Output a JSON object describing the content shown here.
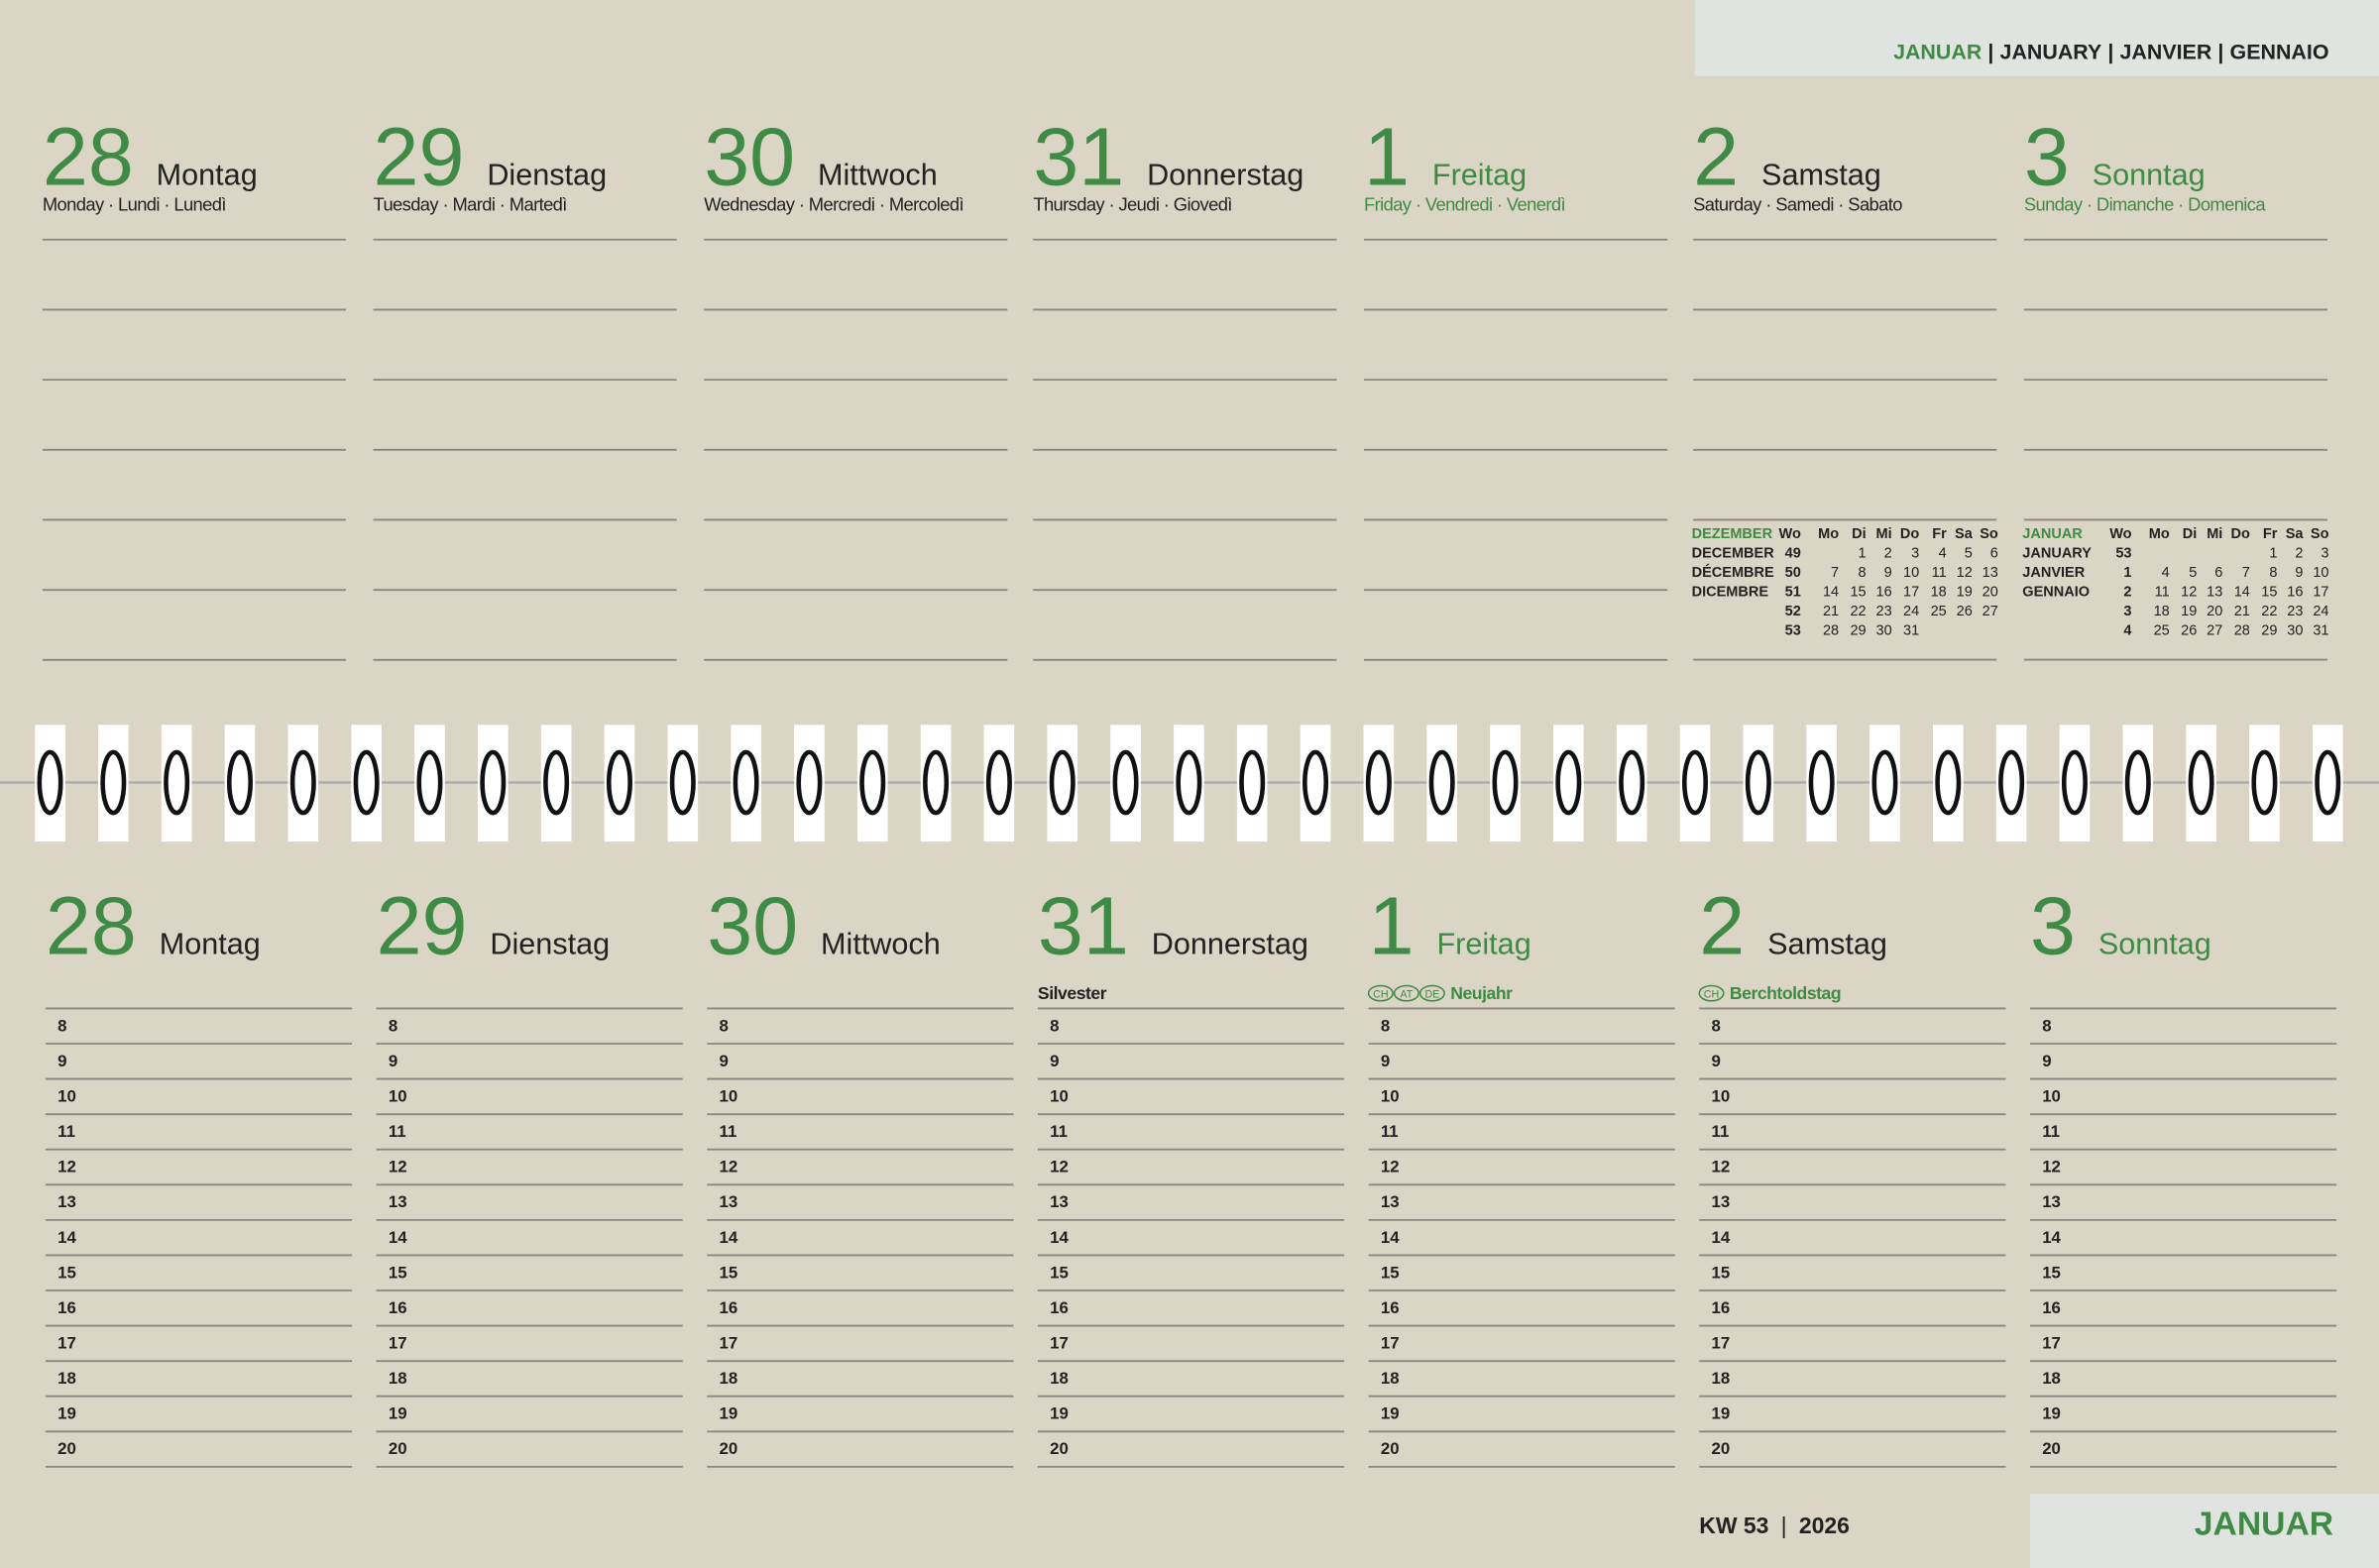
{
  "separator": "|",
  "header": {
    "months": [
      "JANUAR",
      "JANUARY",
      "JANVIER",
      "GENNAIO"
    ]
  },
  "top_days": [
    {
      "number": "28",
      "name": "Montag",
      "translations": "Monday · Lundi · Lunedì"
    },
    {
      "number": "29",
      "name": "Dienstag",
      "translations": "Tuesday · Mardi · Martedì"
    },
    {
      "number": "30",
      "name": "Mittwoch",
      "translations": "Wednesday · Mercredi · Mercoledì"
    },
    {
      "number": "31",
      "name": "Donnerstag",
      "translations": "Thursday · Jeudi · Giovedì"
    },
    {
      "number": "1",
      "name": "Freitag",
      "translations": "Friday · Vendredi · Venerdì",
      "highlight": true
    },
    {
      "number": "2",
      "name": "Samstag",
      "translations": "Saturday · Samedi · Sabato"
    },
    {
      "number": "3",
      "name": "Sonntag",
      "translations": "Sunday · Dimanche · Domenica",
      "highlight": true
    }
  ],
  "mini_calendars": [
    {
      "months": [
        "DEZEMBER",
        "DECEMBER",
        "DÉCEMBRE",
        "DICEMBRE"
      ],
      "headers": [
        "Wo",
        "Mo",
        "Di",
        "Mi",
        "Do",
        "Fr",
        "Sa",
        "So"
      ],
      "rows": [
        [
          "49",
          null,
          "1",
          "2",
          "3",
          "4",
          "5",
          "6"
        ],
        [
          "50",
          "7",
          "8",
          "9",
          "10",
          "11",
          "12",
          "13"
        ],
        [
          "51",
          "14",
          "15",
          "16",
          "17",
          "18",
          "19",
          "20"
        ],
        [
          "52",
          "21",
          "22",
          "23",
          "24",
          "25",
          "26",
          "27"
        ],
        [
          "53",
          "28",
          "29",
          "30",
          "31",
          null,
          null,
          null
        ]
      ]
    },
    {
      "months": [
        "JANUAR",
        "JANUARY",
        "JANVIER",
        "GENNAIO"
      ],
      "headers": [
        "Wo",
        "Mo",
        "Di",
        "Mi",
        "Do",
        "Fr",
        "Sa",
        "So"
      ],
      "rows": [
        [
          "53",
          null,
          null,
          null,
          null,
          "1",
          "2",
          "3"
        ],
        [
          "1",
          "4",
          "5",
          "6",
          "7",
          "8",
          "9",
          "10"
        ],
        [
          "2",
          "11",
          "12",
          "13",
          "14",
          "15",
          "16",
          "17"
        ],
        [
          "3",
          "18",
          "19",
          "20",
          "21",
          "22",
          "23",
          "24"
        ],
        [
          "4",
          "25",
          "26",
          "27",
          "28",
          "29",
          "30",
          "31"
        ]
      ]
    }
  ],
  "bottom_days": [
    {
      "number": "28",
      "name": "Montag"
    },
    {
      "number": "29",
      "name": "Dienstag"
    },
    {
      "number": "30",
      "name": "Mittwoch"
    },
    {
      "number": "31",
      "name": "Donnerstag",
      "note": "Silvester"
    },
    {
      "number": "1",
      "name": "Freitag",
      "highlight": true,
      "note": "Neujahr",
      "regions": [
        "CH",
        "AT",
        "DE"
      ]
    },
    {
      "number": "2",
      "name": "Samstag",
      "note": "Berchtoldstag",
      "regions": [
        "CH"
      ]
    },
    {
      "number": "3",
      "name": "Sonntag",
      "highlight": true
    }
  ],
  "hours": [
    "8",
    "9",
    "10",
    "11",
    "12",
    "13",
    "14",
    "15",
    "16",
    "17",
    "18",
    "19",
    "20"
  ],
  "footer": {
    "week": "KW 53",
    "year": "2026",
    "month": "JANUAR"
  }
}
